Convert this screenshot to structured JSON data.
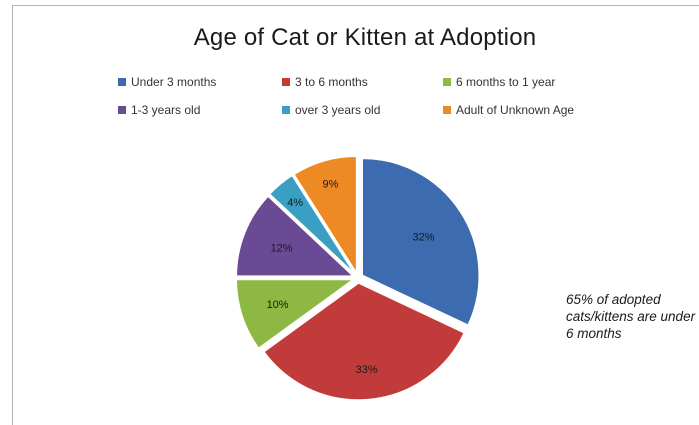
{
  "chart_data": {
    "type": "pie",
    "title": "Age of Cat or Kitten at Adoption",
    "slices": [
      {
        "label": "Under 3 months",
        "value": 32,
        "value_label": "32%",
        "color": "#3c6bb0"
      },
      {
        "label": "3 to 6 months",
        "value": 33,
        "value_label": "33%",
        "color": "#c23b3b"
      },
      {
        "label": "6 months to 1 year",
        "value": 10,
        "value_label": "10%",
        "color": "#8db843"
      },
      {
        "label": "1-3 years old",
        "value": 12,
        "value_label": "12%",
        "color": "#6a4a94"
      },
      {
        "label": "over 3 years old",
        "value": 4,
        "value_label": "4%",
        "color": "#3a9fc2"
      },
      {
        "label": "Adult of Unknown Age",
        "value": 9,
        "value_label": "9%",
        "color": "#ee8a23"
      }
    ],
    "legend_position": "top",
    "annotation": "65% of adopted cats/kittens are under 6 months"
  }
}
